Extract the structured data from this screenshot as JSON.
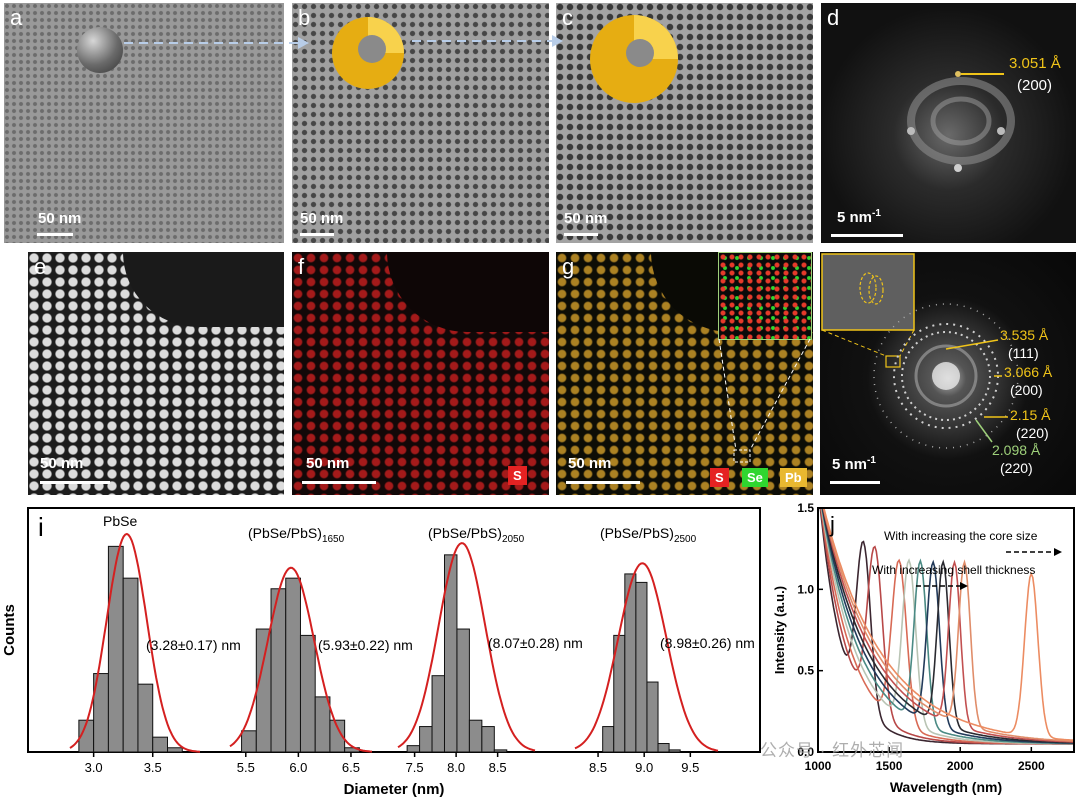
{
  "panels": {
    "a": {
      "label": "a",
      "scale": "50 nm"
    },
    "b": {
      "label": "b",
      "scale": "50 nm"
    },
    "c": {
      "label": "c",
      "scale": "50 nm"
    },
    "d": {
      "label": "d",
      "scale": "5 nm",
      "scale_sup": "-1",
      "d_spacing": "3.051 Å",
      "plane": "(200)"
    },
    "e": {
      "label": "e",
      "scale": "50 nm"
    },
    "f": {
      "label": "f",
      "scale": "50 nm",
      "elements": [
        "S"
      ]
    },
    "g": {
      "label": "g",
      "scale": "50 nm",
      "elements": [
        "S",
        "Se",
        "Pb"
      ]
    },
    "h": {
      "label": "h",
      "scale": "5 nm",
      "scale_sup": "-1",
      "rings": [
        {
          "d": "3.535 Å",
          "plane": "(111)"
        },
        {
          "d": "3.066 Å",
          "plane": "(200)"
        },
        {
          "d": "2.15 Å",
          "plane": "(220)"
        },
        {
          "d": "2.098 Å",
          "plane": "(220)"
        }
      ]
    }
  },
  "colors": {
    "gold": "#f0c419",
    "red_fit": "#d42020",
    "bar_fill": "#8c8c8c",
    "S": "#e52222",
    "Se": "#2fd62f",
    "Pb": "#e8b830",
    "green_label": "#9ed07a"
  },
  "chart_data": [
    {
      "panel": "i",
      "type": "bar",
      "ylabel": "Counts",
      "xlabel": "Diameter (nm)",
      "xticks": [
        [
          "3.0",
          "3.5"
        ],
        [
          "5.5",
          "6.0",
          "6.5"
        ],
        [
          "7.5",
          "8.0",
          "8.5"
        ],
        [
          "8.5",
          "9.0",
          "9.5"
        ]
      ],
      "groups": [
        {
          "name": "PbSe",
          "sub": "",
          "fit_label": "(3.28±0.17) nm",
          "bin_start": 2.875,
          "bin_width": 0.125,
          "ticks": [
            3.0,
            3.5
          ],
          "xrange": [
            2.8,
            3.9
          ],
          "mean": 3.28,
          "sd": 0.17,
          "values": [
            15,
            37,
            97,
            82,
            32,
            7,
            2
          ]
        },
        {
          "name": "(PbSe/PbS)",
          "sub": "1650",
          "fit_label": "(5.93±0.22) nm",
          "bin_start": 5.46,
          "bin_width": 0.14,
          "ticks": [
            5.5,
            6.0,
            6.5
          ],
          "xrange": [
            5.35,
            6.7
          ],
          "mean": 5.93,
          "sd": 0.22,
          "values": [
            10,
            58,
            77,
            82,
            55,
            26,
            15,
            2
          ]
        },
        {
          "name": "(PbSe/PbS)",
          "sub": "2050",
          "fit_label": "(8.07±0.28) nm",
          "bin_start": 7.41,
          "bin_width": 0.15,
          "ticks": [
            7.5,
            8.0,
            8.5
          ],
          "xrange": [
            7.3,
            8.95
          ],
          "mean": 8.07,
          "sd": 0.28,
          "values": [
            3,
            12,
            36,
            93,
            58,
            15,
            12,
            1
          ]
        },
        {
          "name": "(PbSe/PbS)",
          "sub": "2500",
          "fit_label": "(8.98±0.26) nm",
          "bin_start": 8.55,
          "bin_width": 0.12,
          "ticks": [
            8.5,
            9.0,
            9.5
          ],
          "xrange": [
            8.25,
            9.8
          ],
          "mean": 8.98,
          "sd": 0.26,
          "values": [
            12,
            55,
            84,
            80,
            33,
            4,
            1
          ]
        }
      ],
      "ylim": [
        0,
        100
      ]
    },
    {
      "panel": "j",
      "type": "line",
      "xlabel": "Wavelength (nm)",
      "ylabel": "Intensity (a.u.)",
      "xlim": [
        1000,
        2800
      ],
      "ylim": [
        0,
        1.5
      ],
      "xticks": [
        "1000",
        "1500",
        "2000",
        "2500"
      ],
      "yticks": [
        "0.0",
        "0.5",
        "1.0",
        "1.5"
      ],
      "annotations": [
        "With increasing the core size",
        "With increasing shell thickness"
      ],
      "series": [
        {
          "peak": 1320,
          "color": "#3b2630",
          "sharpness": 90
        },
        {
          "peak": 1400,
          "color": "#b84848",
          "sharpness": 95
        },
        {
          "peak": 1570,
          "color": "#d86a55",
          "sharpness": 95
        },
        {
          "peak": 1640,
          "color": "#b9c4b4",
          "sharpness": 85
        },
        {
          "peak": 1720,
          "color": "#4a8a84",
          "sharpness": 80
        },
        {
          "peak": 1810,
          "color": "#223a5a",
          "sharpness": 80
        },
        {
          "peak": 1880,
          "color": "#2a2a30",
          "sharpness": 75
        },
        {
          "peak": 1960,
          "color": "#c25050",
          "sharpness": 75
        },
        {
          "peak": 2030,
          "color": "#e08d6a",
          "sharpness": 75
        },
        {
          "peak": 2500,
          "color": "#ec8c62",
          "sharpness": 85
        }
      ]
    }
  ],
  "watermark": "公众号 · 红外芯闻"
}
